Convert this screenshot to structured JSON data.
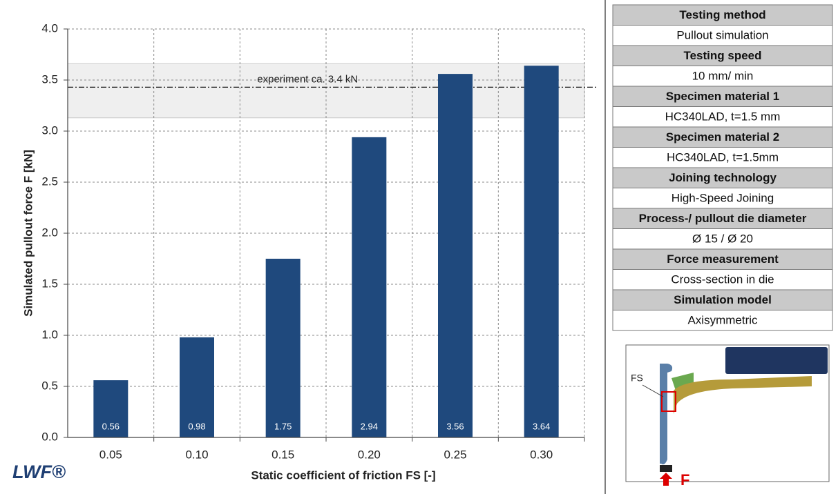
{
  "chart_data": {
    "type": "bar",
    "x_label": "Static coefficient of friction FS [-]",
    "y_label": "Simulated pullout force  F [kN]",
    "categories": [
      "0.05",
      "0.10",
      "0.15",
      "0.20",
      "0.25",
      "0.30"
    ],
    "values": [
      0.56,
      0.98,
      1.75,
      2.94,
      3.56,
      3.64
    ],
    "color": "#1f497d",
    "ylim": [
      0,
      4
    ],
    "yticks": [
      {
        "value": 0,
        "label": "0.0"
      },
      0.5,
      {
        "value": 1,
        "label": "1.0"
      },
      1.5,
      {
        "value": 2,
        "label": "2.0"
      },
      2.5,
      {
        "value": 3,
        "label": "3.0"
      },
      3.5,
      {
        "value": 4,
        "label": "4.0"
      }
    ],
    "grid": true,
    "reference": {
      "label": "experiment ca. 3.4 kN",
      "value": 3.43,
      "band": [
        3.13,
        3.66
      ]
    }
  },
  "logo": "LWF®",
  "table": {
    "rows": [
      [
        "Testing method",
        "Pullout simulation"
      ],
      [
        "Testing speed",
        "10 mm/ min"
      ],
      [
        "Specimen material 1",
        "HC340LAD, t=1.5 mm"
      ],
      [
        "Specimen material 2",
        "HC340LAD, t=1.5mm"
      ],
      [
        "Joining technology",
        "High-Speed Joining"
      ],
      [
        "Process-/ pullout die diameter",
        "Ø 15 / Ø 20"
      ],
      [
        "Force measurement",
        "Cross-section in die"
      ],
      [
        "Simulation model",
        "Axisymmetric"
      ]
    ]
  },
  "diagram": {
    "friction_label": "FS",
    "force_label": "F"
  }
}
